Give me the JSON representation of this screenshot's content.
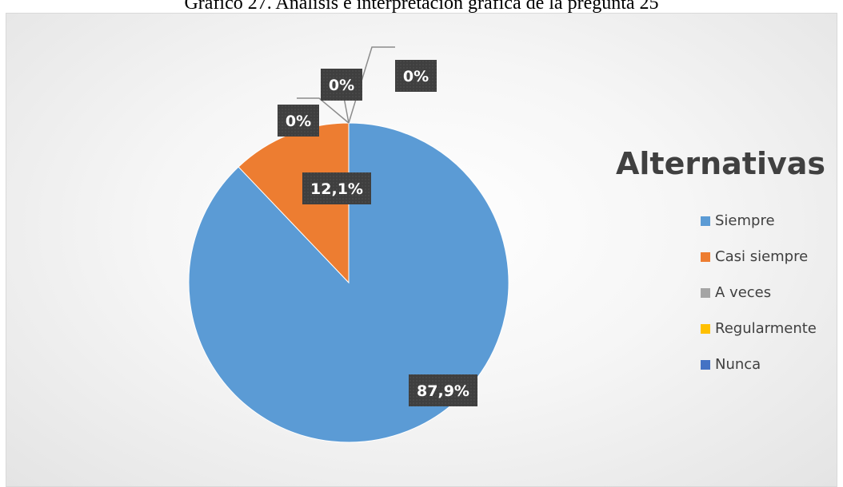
{
  "caption": "Gráfico 27. Análisis e interpretación gráfica de la pregunta 25",
  "chart_data": {
    "type": "pie",
    "title": "",
    "legend_title": "Alternativas",
    "legend_position": "right",
    "categories": [
      "Siempre",
      "Casi siempre",
      "A veces",
      "Regularmente",
      "Nunca"
    ],
    "values": [
      87.9,
      12.1,
      0,
      0,
      0
    ],
    "data_labels": [
      "87,9%",
      "12,1%",
      "0%",
      "0%",
      "0%"
    ],
    "colors": [
      "#5b9bd5",
      "#ed7d31",
      "#a5a5a5",
      "#ffc000",
      "#4472c4"
    ]
  }
}
